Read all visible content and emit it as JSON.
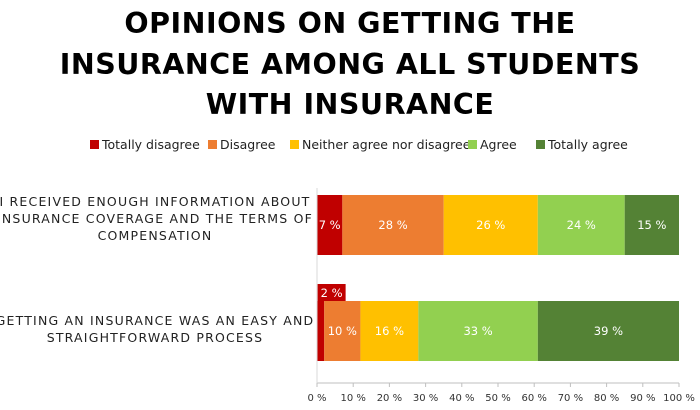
{
  "chart_data": {
    "type": "bar",
    "orientation": "horizontal",
    "stacked": "percent",
    "title": "OPINIONS ON GETTING THE INSURANCE AMONG ALL STUDENTS WITH INSURANCE",
    "title_lines": [
      "OPINIONS ON GETTING THE",
      "INSURANCE AMONG ALL STUDENTS",
      "WITH INSURANCE"
    ],
    "categories": [
      "I RECEIVED ENOUGH INFORMATION ABOUT INSURANCE COVERAGE AND THE TERMS OF COMPENSATION",
      "GETTING AN INSURANCE WAS AN EASY AND STRAIGHTFORWARD PROCESS"
    ],
    "category_label_lines": [
      [
        "I RECEIVED ENOUGH INFORMATION ABOUT",
        "INSURANCE COVERAGE AND THE TERMS OF",
        "COMPENSATION"
      ],
      [
        "GETTING AN INSURANCE WAS AN EASY AND",
        "STRAIGHTFORWARD PROCESS"
      ]
    ],
    "series": [
      {
        "name": "Totally disagree",
        "color": "#c00000",
        "values": [
          7,
          2
        ],
        "labels": [
          "7 %",
          "2 %"
        ]
      },
      {
        "name": "Disagree",
        "color": "#ed7d31",
        "values": [
          28,
          10
        ],
        "labels": [
          "28 %",
          "10 %"
        ]
      },
      {
        "name": "Neither agree nor disagree",
        "color": "#ffc000",
        "values": [
          26,
          16
        ],
        "labels": [
          "26 %",
          "16 %"
        ]
      },
      {
        "name": "Agree",
        "color": "#92d050",
        "values": [
          24,
          33
        ],
        "labels": [
          "24 %",
          "33 %"
        ]
      },
      {
        "name": "Totally agree",
        "color": "#548235",
        "values": [
          15,
          39
        ],
        "labels": [
          "15 %",
          "39 %"
        ]
      }
    ],
    "xlim": [
      0,
      100
    ],
    "xticks": [
      0,
      10,
      20,
      30,
      40,
      50,
      60,
      70,
      80,
      90,
      100
    ],
    "xtick_labels": [
      "0 %",
      "10 %",
      "20 %",
      "30 %",
      "40 %",
      "50 %",
      "60 %",
      "70 %",
      "80 %",
      "90 %",
      "100 %"
    ],
    "legend_position": "top",
    "xlabel": "",
    "ylabel": "",
    "grid": false
  }
}
